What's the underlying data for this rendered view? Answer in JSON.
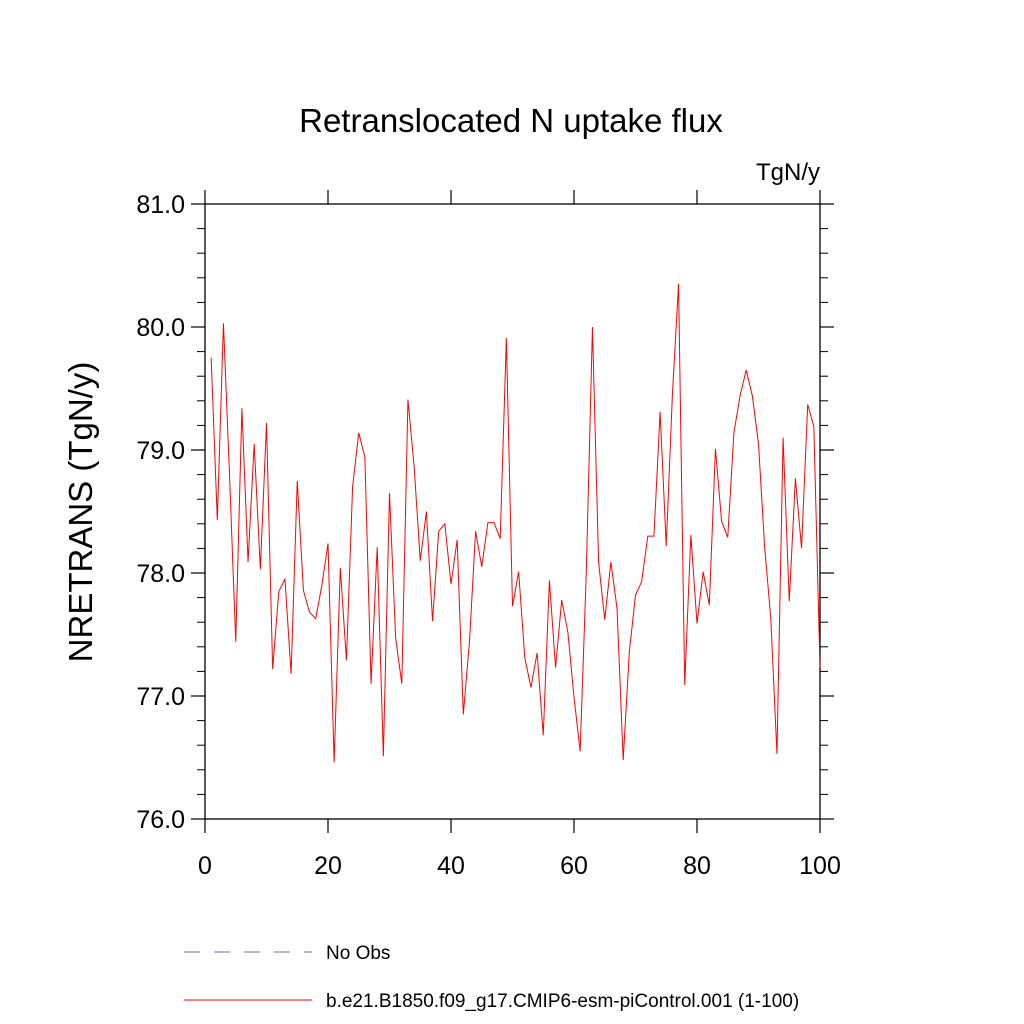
{
  "chart_data": {
    "type": "line",
    "title": "Retranslocated N uptake flux",
    "units": "TgN/y",
    "xlabel": "",
    "ylabel": "NRETRANS  (TgN/y)",
    "xlim": [
      0,
      100
    ],
    "ylim": [
      76.0,
      81.0
    ],
    "x_ticks": [
      0,
      20,
      40,
      60,
      80,
      100
    ],
    "x_tick_labels": [
      "0",
      "20",
      "40",
      "60",
      "80",
      "100"
    ],
    "y_ticks": [
      76.0,
      77.0,
      78.0,
      79.0,
      80.0,
      81.0
    ],
    "y_tick_labels": [
      "76.0",
      "77.0",
      "78.0",
      "79.0",
      "80.0",
      "81.0"
    ],
    "grid": false,
    "legend_position": "bottom",
    "series": [
      {
        "name": "b.e21.B1850.f09_g17.CMIP6-esm-piControl.001 (1-100)",
        "color": "#ff0000",
        "style": "solid",
        "x_start": 1,
        "values": [
          79.75,
          78.43,
          80.03,
          78.78,
          77.44,
          79.34,
          78.09,
          79.05,
          78.03,
          79.22,
          77.22,
          77.85,
          77.95,
          77.18,
          78.75,
          77.86,
          77.68,
          77.63,
          77.9,
          78.24,
          76.46,
          78.04,
          77.29,
          78.7,
          79.14,
          78.94,
          77.1,
          78.21,
          76.51,
          78.65,
          77.47,
          77.1,
          79.41,
          78.87,
          78.1,
          78.5,
          77.61,
          78.34,
          78.4,
          77.91,
          78.27,
          76.85,
          77.44,
          78.34,
          78.05,
          78.41,
          78.41,
          78.28,
          79.91,
          77.73,
          78.01,
          77.31,
          77.07,
          77.35,
          76.68,
          77.94,
          77.23,
          77.78,
          77.52,
          76.99,
          76.55,
          78.01,
          80.0,
          78.09,
          77.62,
          78.09,
          77.71,
          76.48,
          77.36,
          77.82,
          77.93,
          78.3,
          78.3,
          79.31,
          78.22,
          79.45,
          80.35,
          77.09,
          78.31,
          77.59,
          78.01,
          77.74,
          79.01,
          78.42,
          78.29,
          79.14,
          79.44,
          79.65,
          79.44,
          79.05,
          78.21,
          77.63,
          76.53,
          79.1,
          77.77,
          78.77,
          78.2,
          79.37,
          79.19,
          77.23
        ]
      }
    ],
    "legend": [
      {
        "label": "No Obs",
        "color": "#6b6bc0",
        "style": "dashed"
      },
      {
        "label": "b.e21.B1850.f09_g17.CMIP6-esm-piControl.001 (1-100)",
        "color": "#ff0000",
        "style": "solid"
      }
    ]
  }
}
